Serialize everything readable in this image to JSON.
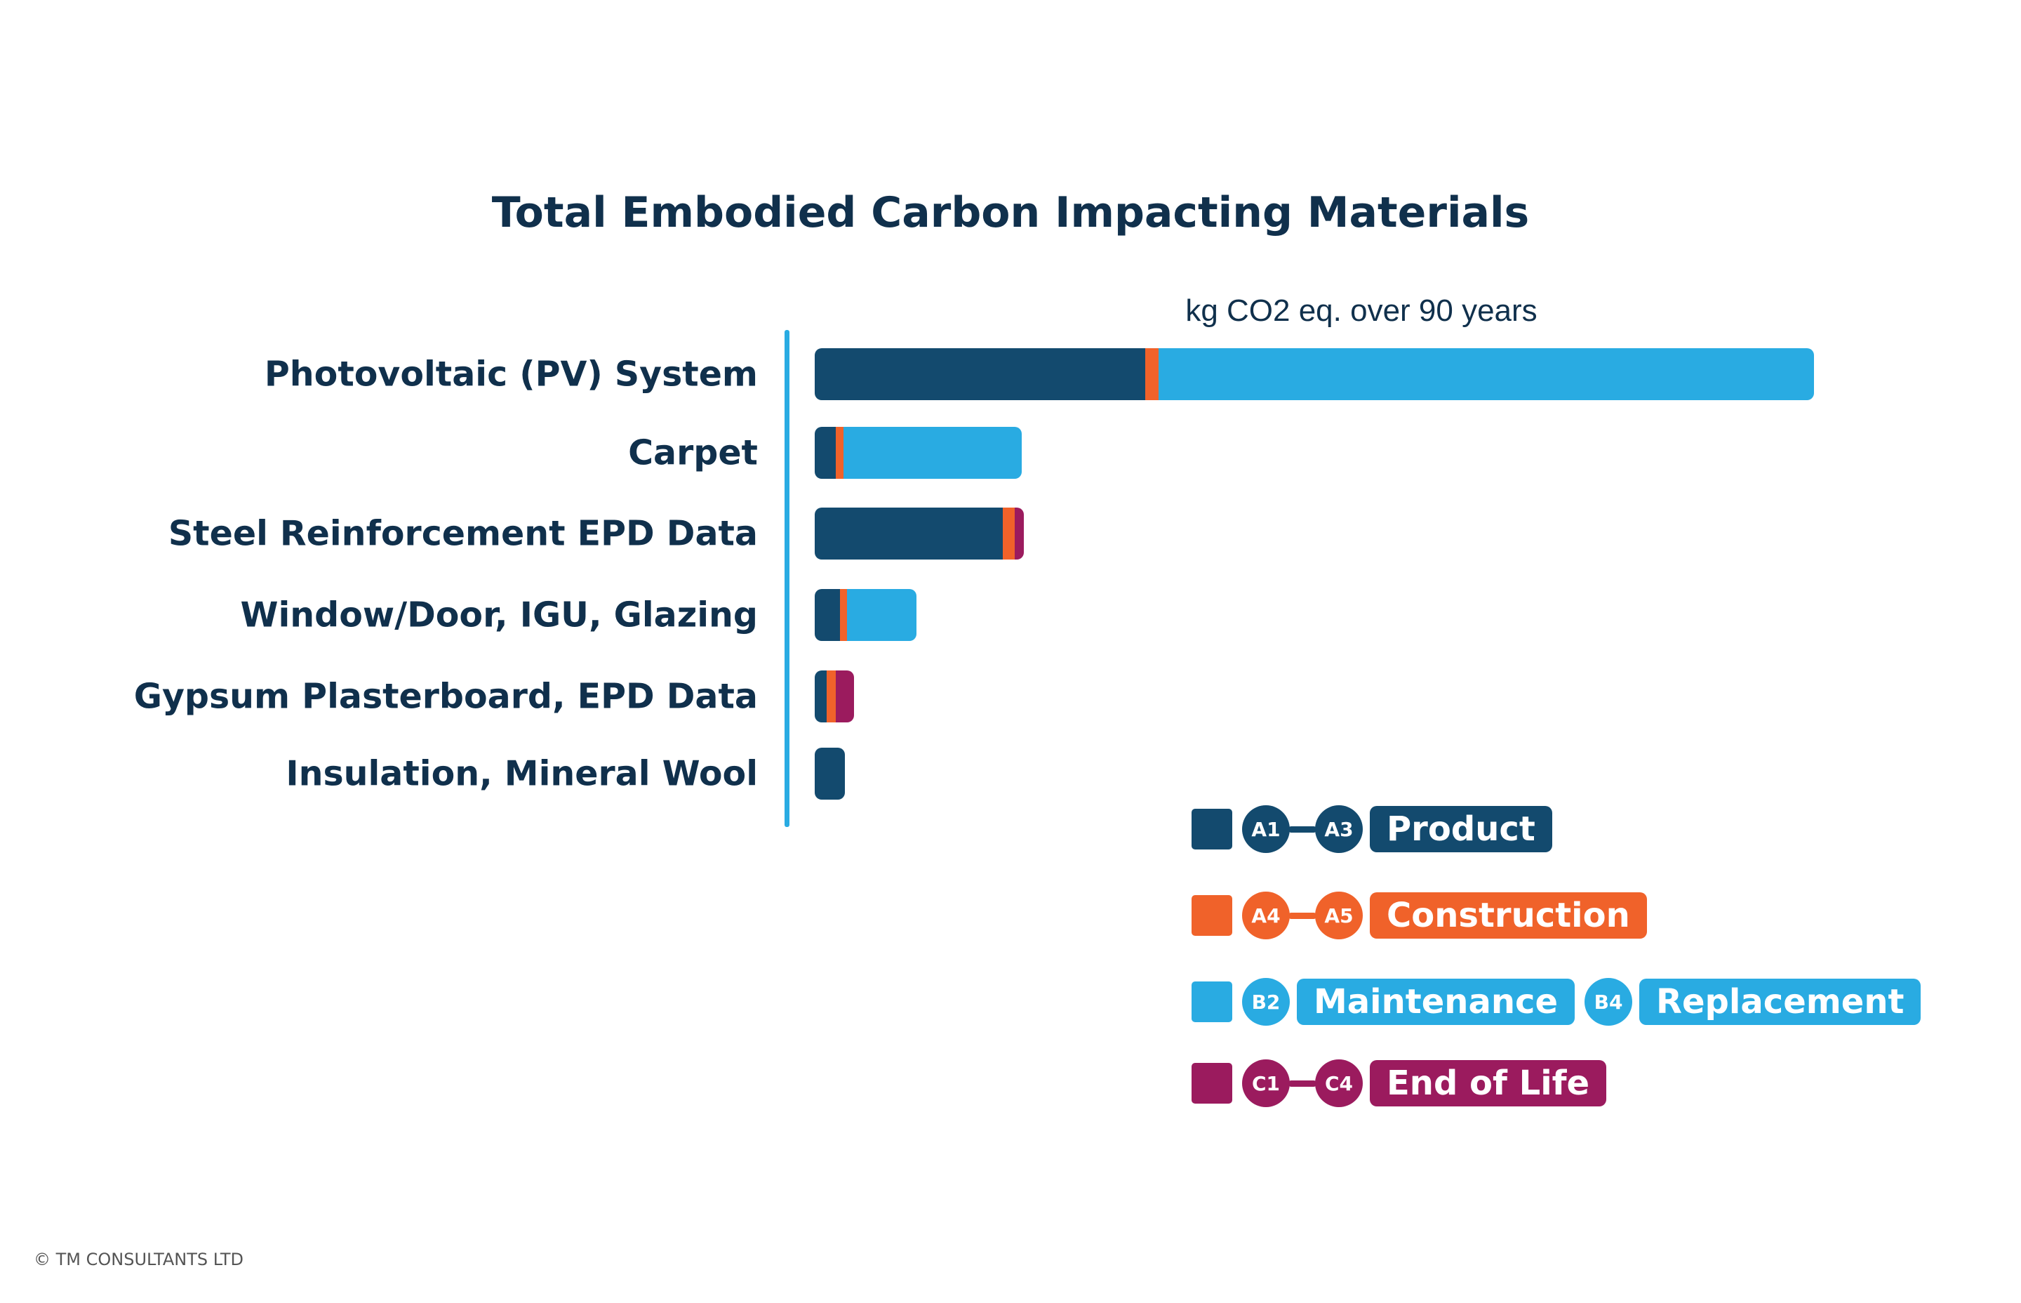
{
  "chart_data": {
    "type": "bar",
    "orientation": "horizontal",
    "stacked": true,
    "title": "Total Embodied Carbon Impacting Materials",
    "xlabel": "kg CO2 eq. over 90 years",
    "ylabel": "",
    "grid": false,
    "legend_position": "bottom-right",
    "categories": [
      "Photovoltaic (PV) System",
      "Carpet",
      "Steel Reinforcement EPD Data",
      "Window/Door, IGU, Glazing",
      "Gypsum Plasterboard, EPD Data",
      "Insulation, Mineral Wool"
    ],
    "series": [
      {
        "key": "product",
        "values": [
          33.1,
          2.1,
          18.8,
          2.5,
          1.2,
          3.0
        ]
      },
      {
        "key": "construction",
        "values": [
          1.3,
          0.8,
          1.2,
          0.7,
          0.9,
          0
        ]
      },
      {
        "key": "use",
        "values": [
          65.6,
          17.8,
          0,
          7.0,
          0,
          0
        ]
      },
      {
        "key": "end_of_life",
        "values": [
          0,
          0,
          0.9,
          0,
          1.8,
          0
        ]
      }
    ]
  },
  "colors": {
    "product": "#134a6e",
    "construction": "#f0622a",
    "use": "#29abe2",
    "end_of_life": "#9b1b5e"
  },
  "legend": {
    "product": {
      "from": "A1",
      "to": "A3",
      "label": "Product"
    },
    "construction": {
      "from": "A4",
      "to": "A5",
      "label": "Construction"
    },
    "use": {
      "b2": "B2",
      "b2_label": "Maintenance",
      "b4": "B4",
      "b4_label": "Replacement"
    },
    "end_of_life": {
      "from": "C1",
      "to": "C4",
      "label": "End of Life"
    }
  },
  "footer": "© TM CONSULTANTS LTD"
}
